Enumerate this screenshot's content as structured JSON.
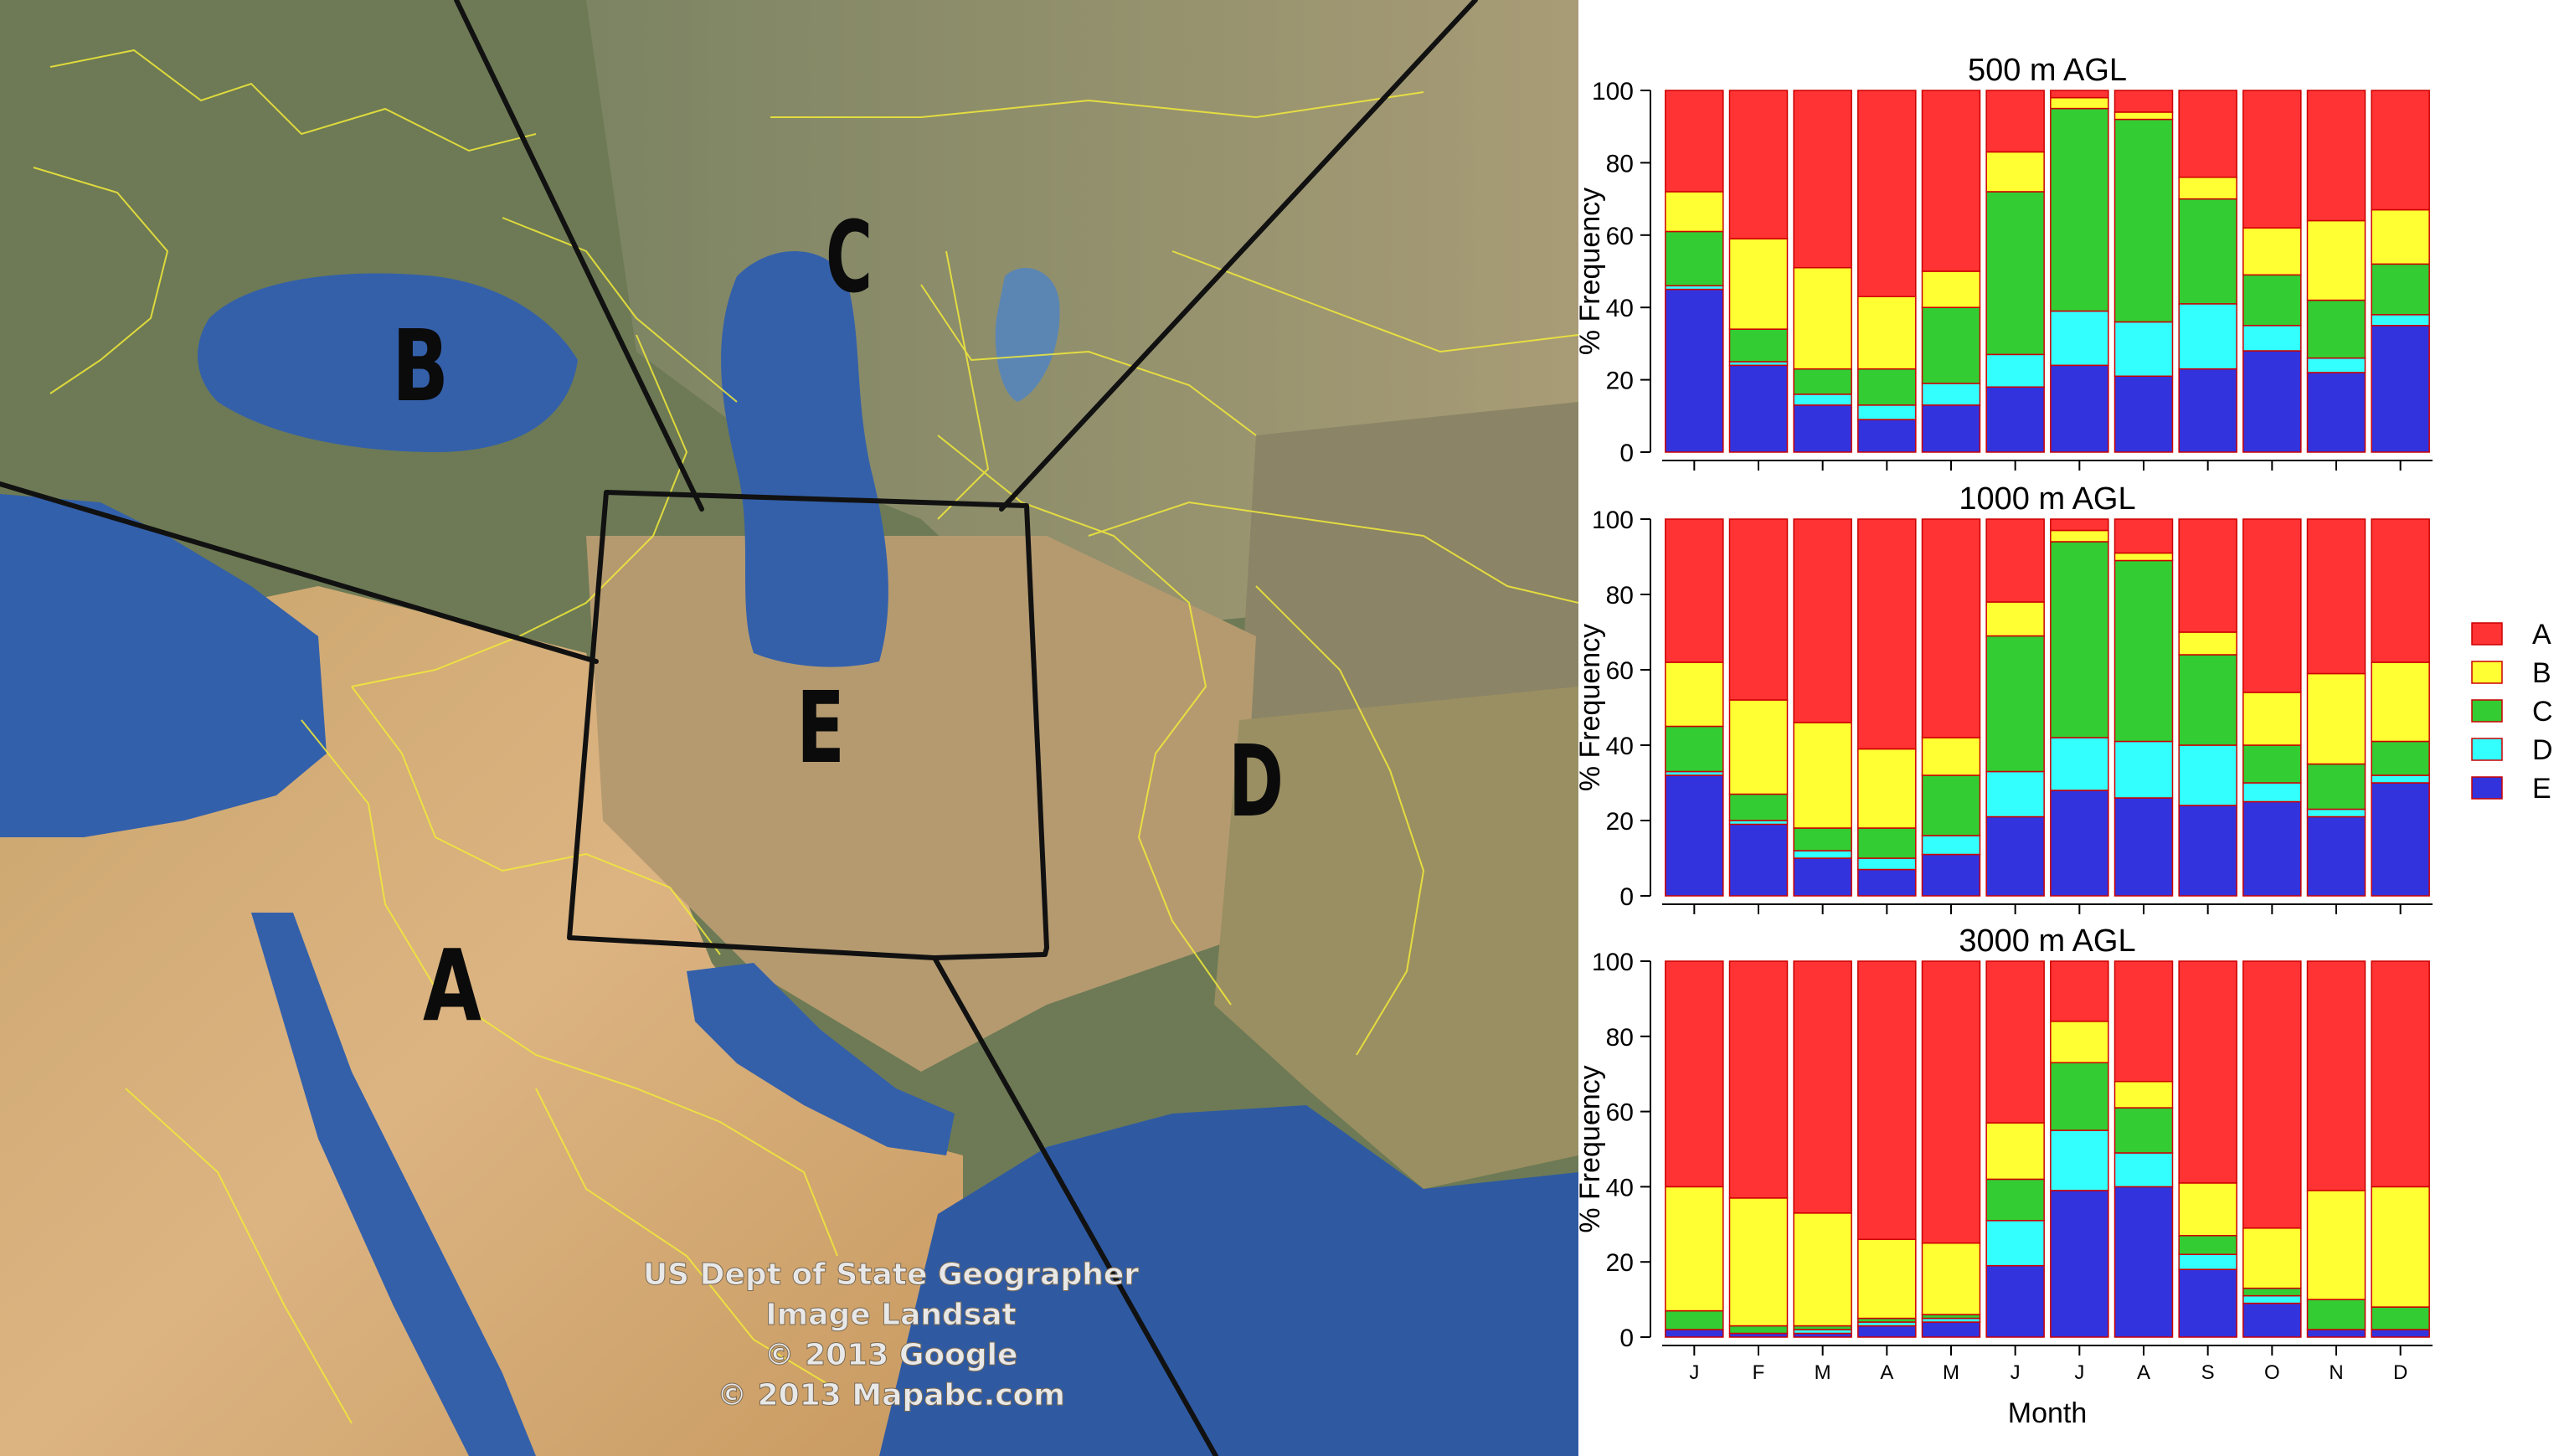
{
  "map": {
    "region_labels": [
      "A",
      "B",
      "C",
      "D",
      "E"
    ],
    "attribution": [
      "US Dept of State Geographer",
      "Image Landsat",
      "© 2013 Google",
      "© 2013 Mapabc.com"
    ]
  },
  "legend": {
    "entries": [
      {
        "label": "A",
        "color": "#ff3333"
      },
      {
        "label": "B",
        "color": "#ffff33"
      },
      {
        "label": "C",
        "color": "#33cc33"
      },
      {
        "label": "D",
        "color": "#33ffff"
      },
      {
        "label": "E",
        "color": "#3333dd"
      }
    ]
  },
  "colors": {
    "A": "#ff3333",
    "B": "#ffff33",
    "C": "#33cc33",
    "D": "#33ffff",
    "E": "#3333dd",
    "bar_stroke": "#cc0000",
    "ocean": "#2f5fa8",
    "land_desert": "#d8b27c",
    "land_green": "#6f7f52",
    "border": "#f2ea3a"
  },
  "chart_data": [
    {
      "type": "bar",
      "stacked": true,
      "title": "500 m AGL",
      "xlabel": "",
      "ylabel": "% Frequency",
      "ylim": [
        0,
        100
      ],
      "yticks": [
        0,
        20,
        40,
        60,
        80,
        100
      ],
      "categories": [
        "J",
        "F",
        "M",
        "A",
        "M",
        "J",
        "J",
        "A",
        "S",
        "O",
        "N",
        "D"
      ],
      "series": [
        {
          "name": "E",
          "values": [
            45,
            24,
            13,
            9,
            13,
            18,
            24,
            21,
            23,
            28,
            22,
            35
          ]
        },
        {
          "name": "D",
          "values": [
            1,
            1,
            3,
            4,
            6,
            9,
            15,
            15,
            18,
            7,
            4,
            3
          ]
        },
        {
          "name": "C",
          "values": [
            15,
            9,
            7,
            10,
            21,
            45,
            56,
            56,
            29,
            14,
            16,
            14
          ]
        },
        {
          "name": "B",
          "values": [
            11,
            25,
            28,
            20,
            10,
            11,
            3,
            2,
            6,
            13,
            22,
            15
          ]
        },
        {
          "name": "A",
          "values": [
            28,
            41,
            49,
            57,
            50,
            17,
            2,
            6,
            24,
            38,
            36,
            33
          ]
        }
      ]
    },
    {
      "type": "bar",
      "stacked": true,
      "title": "1000 m AGL",
      "xlabel": "",
      "ylabel": "% Frequency",
      "ylim": [
        0,
        100
      ],
      "yticks": [
        0,
        20,
        40,
        60,
        80,
        100
      ],
      "categories": [
        "J",
        "F",
        "M",
        "A",
        "M",
        "J",
        "J",
        "A",
        "S",
        "O",
        "N",
        "D"
      ],
      "series": [
        {
          "name": "E",
          "values": [
            32,
            19,
            10,
            7,
            11,
            21,
            28,
            26,
            24,
            25,
            21,
            30
          ]
        },
        {
          "name": "D",
          "values": [
            1,
            1,
            2,
            3,
            5,
            12,
            14,
            15,
            16,
            5,
            2,
            2
          ]
        },
        {
          "name": "C",
          "values": [
            12,
            7,
            6,
            8,
            16,
            36,
            52,
            48,
            24,
            10,
            12,
            9
          ]
        },
        {
          "name": "B",
          "values": [
            17,
            25,
            28,
            21,
            10,
            9,
            3,
            2,
            6,
            14,
            24,
            21
          ]
        },
        {
          "name": "A",
          "values": [
            38,
            48,
            54,
            61,
            58,
            22,
            3,
            9,
            30,
            46,
            41,
            38
          ]
        }
      ]
    },
    {
      "type": "bar",
      "stacked": true,
      "title": "3000 m AGL",
      "xlabel": "Month",
      "ylabel": "% Frequency",
      "ylim": [
        0,
        100
      ],
      "yticks": [
        0,
        20,
        40,
        60,
        80,
        100
      ],
      "categories": [
        "J",
        "F",
        "M",
        "A",
        "M",
        "J",
        "J",
        "A",
        "S",
        "O",
        "N",
        "D"
      ],
      "series": [
        {
          "name": "E",
          "values": [
            2,
            1,
            1,
            3,
            4,
            19,
            39,
            40,
            18,
            9,
            2,
            2
          ]
        },
        {
          "name": "D",
          "values": [
            0,
            0,
            1,
            1,
            1,
            12,
            16,
            9,
            4,
            2,
            0,
            0
          ]
        },
        {
          "name": "C",
          "values": [
            5,
            2,
            1,
            1,
            1,
            11,
            18,
            12,
            5,
            2,
            8,
            6
          ]
        },
        {
          "name": "B",
          "values": [
            33,
            34,
            30,
            21,
            19,
            15,
            11,
            7,
            14,
            16,
            29,
            32
          ]
        },
        {
          "name": "A",
          "values": [
            60,
            63,
            67,
            74,
            75,
            43,
            16,
            32,
            59,
            71,
            61,
            60
          ]
        }
      ]
    }
  ]
}
